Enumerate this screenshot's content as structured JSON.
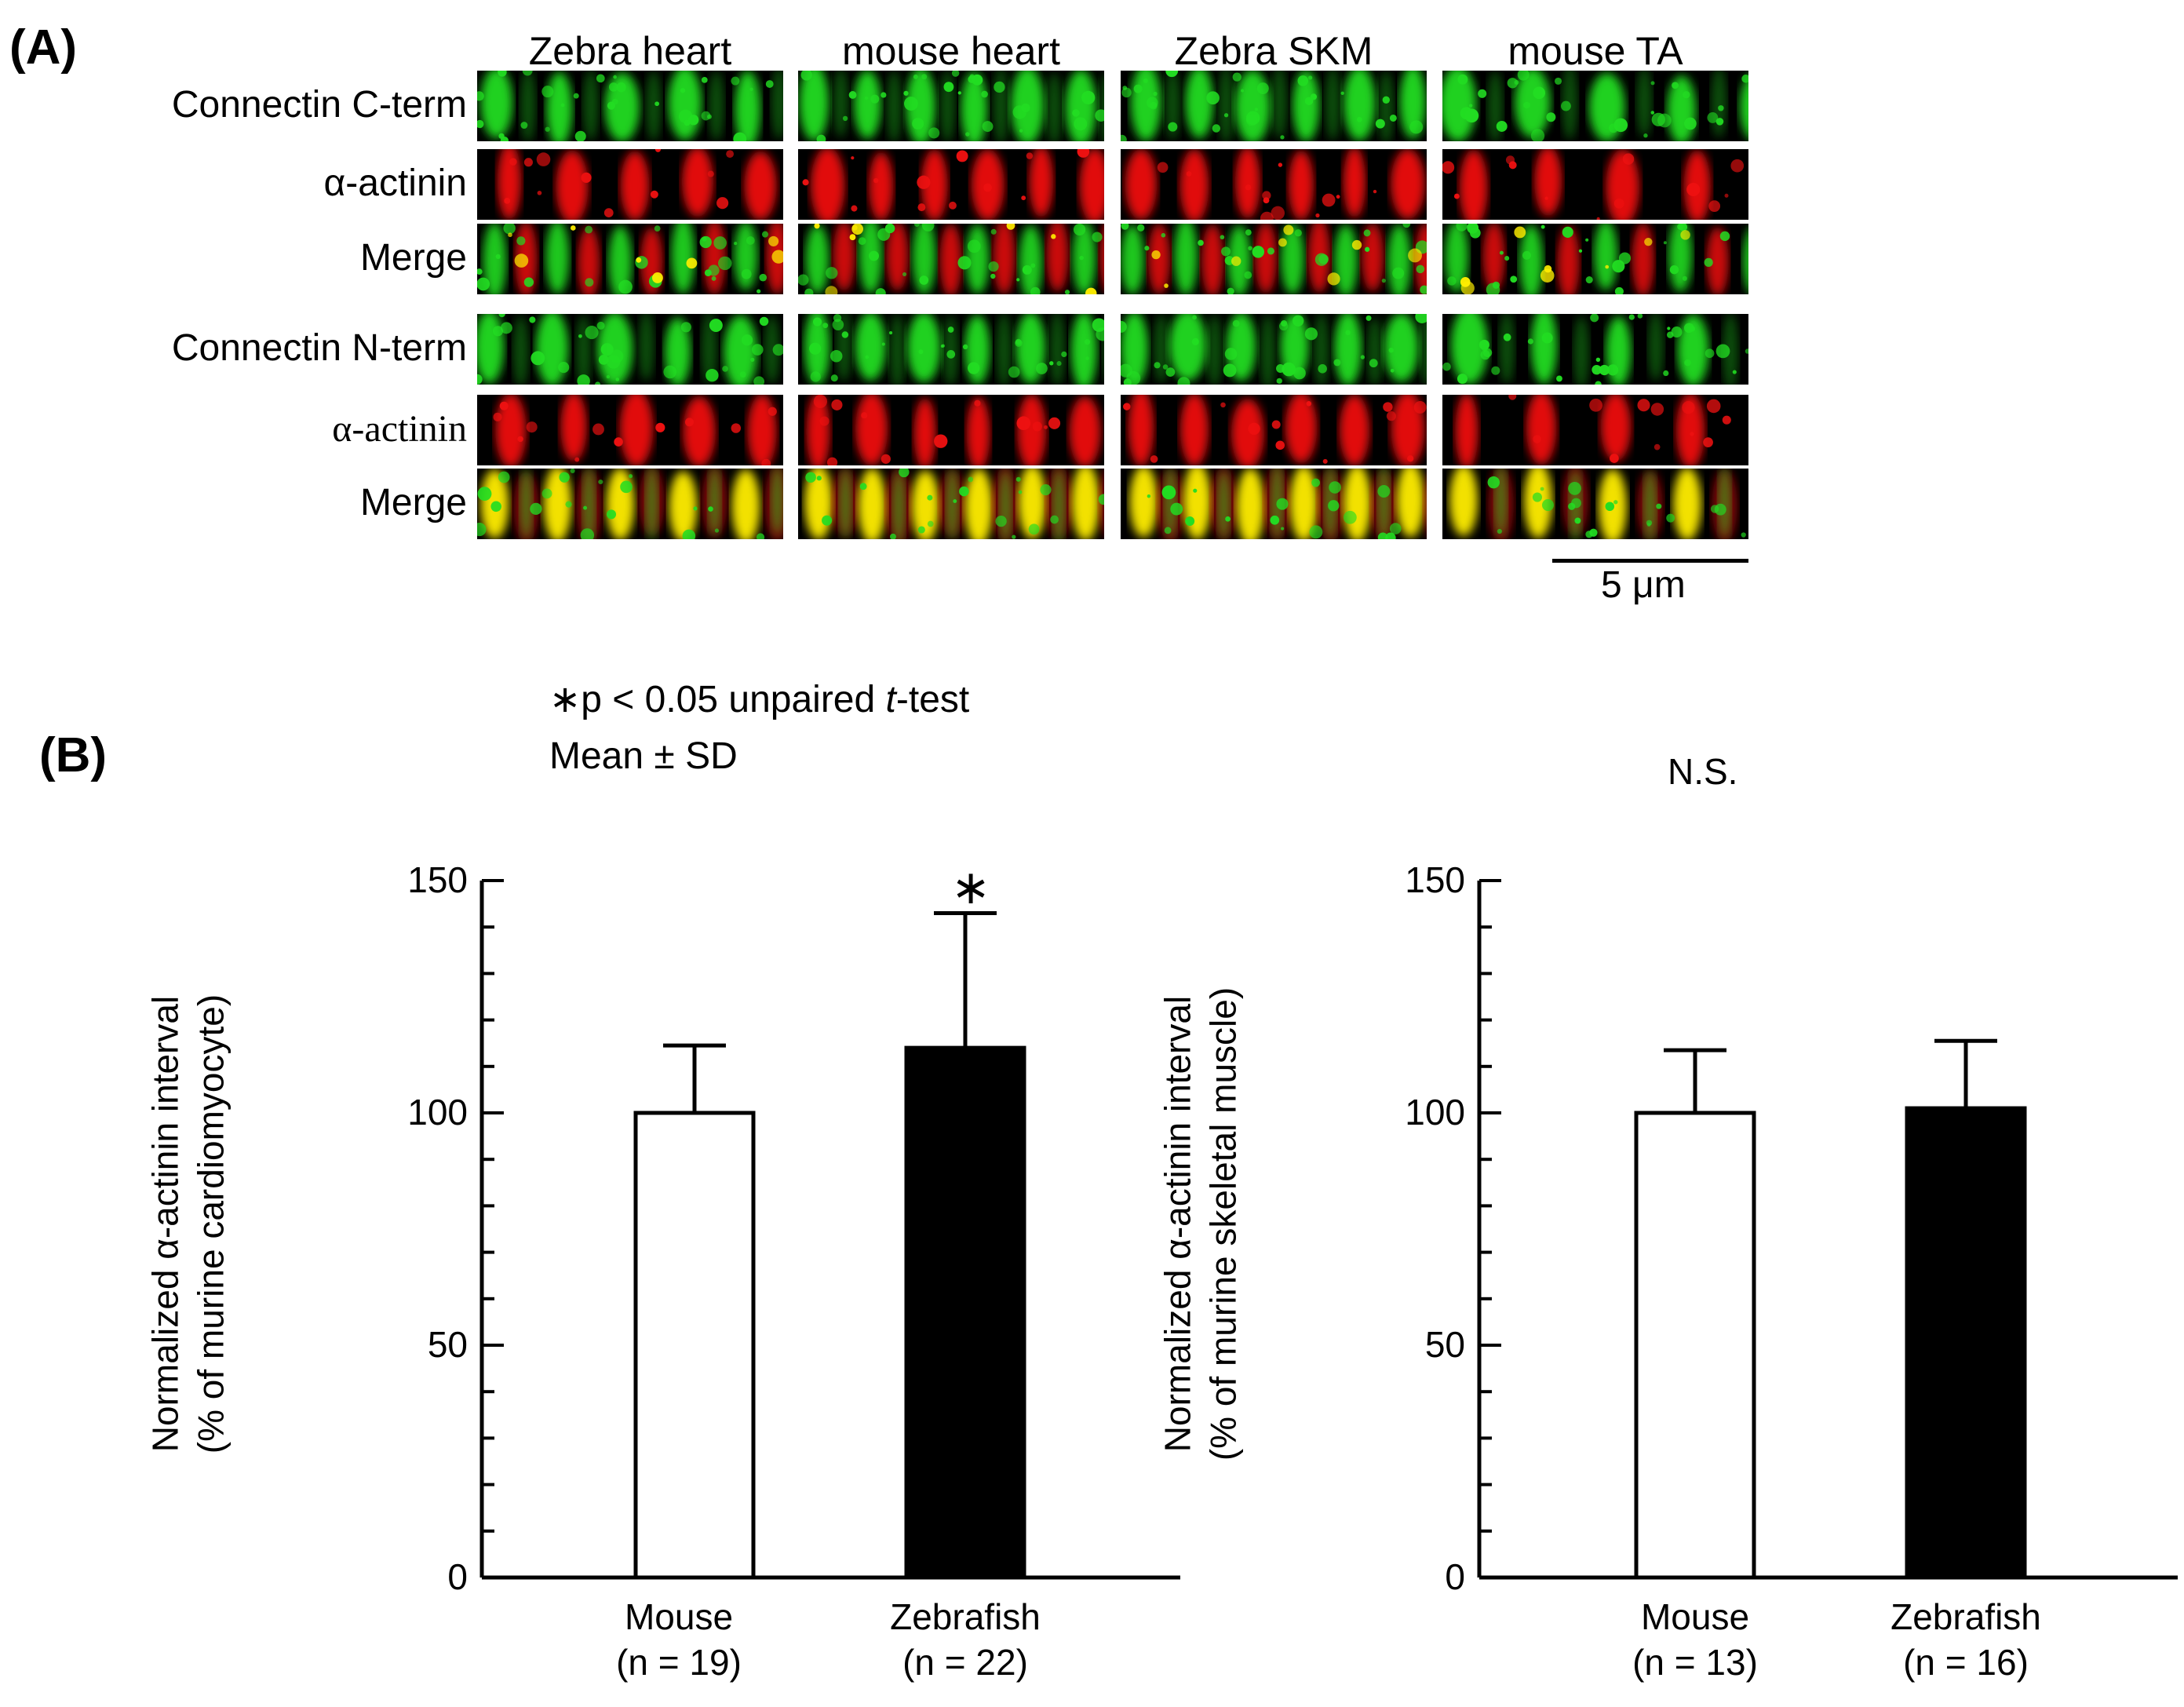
{
  "panel_a": {
    "label": "(A)",
    "columns": [
      "Zebra heart",
      "mouse heart",
      "Zebra SKM",
      "mouse TA"
    ],
    "rows": [
      {
        "label": "Connectin C-term",
        "channel": "green",
        "serif": false
      },
      {
        "label": "α-actinin",
        "channel": "red",
        "serif": false
      },
      {
        "label": "Merge",
        "channel": "merge-c",
        "serif": false
      },
      {
        "label": "Connectin N-term",
        "channel": "green",
        "serif": false
      },
      {
        "label": "α-actinin",
        "channel": "red",
        "serif": true
      },
      {
        "label": "Merge",
        "channel": "merge-n",
        "serif": false
      }
    ],
    "scale_bar_label": "5 μm",
    "colors": {
      "green": "#22dd22",
      "red": "#ee1111",
      "yellow": "#ffee00",
      "background": "#000000"
    }
  },
  "panel_b": {
    "label": "(B)",
    "stat_note": {
      "prefix": "∗p < 0.05  unpaired ",
      "test_italic": "t",
      "suffix": "-test"
    },
    "mean_note": "Mean ± SD",
    "ns_label": "N.S."
  },
  "chart_data": [
    {
      "type": "bar",
      "categories": [
        "Mouse",
        "Zebrafish"
      ],
      "category_sublabels": [
        "(n = 19)",
        "(n = 22)"
      ],
      "values": [
        100,
        114
      ],
      "errors": [
        14.5,
        29
      ],
      "bar_fills": [
        "#ffffff",
        "#000000"
      ],
      "ylabel_line1": "Normalized α-actinin interval",
      "ylabel_line2": "(% of murine cardiomyocyte)",
      "ylim": [
        0,
        150
      ],
      "yticks": [
        0,
        50,
        100,
        150
      ],
      "significance": [
        "",
        "∗"
      ]
    },
    {
      "type": "bar",
      "categories": [
        "Mouse",
        "Zebrafish"
      ],
      "category_sublabels": [
        "(n = 13)",
        "(n = 16)"
      ],
      "values": [
        100,
        101
      ],
      "errors": [
        13.5,
        14.5
      ],
      "bar_fills": [
        "#ffffff",
        "#000000"
      ],
      "ylabel_line1": "Normalized α-actinin interval",
      "ylabel_line2": "(% of murine skeletal muscle)",
      "ylim": [
        0,
        150
      ],
      "yticks": [
        0,
        50,
        100,
        150
      ],
      "significance": [
        "",
        ""
      ]
    }
  ]
}
